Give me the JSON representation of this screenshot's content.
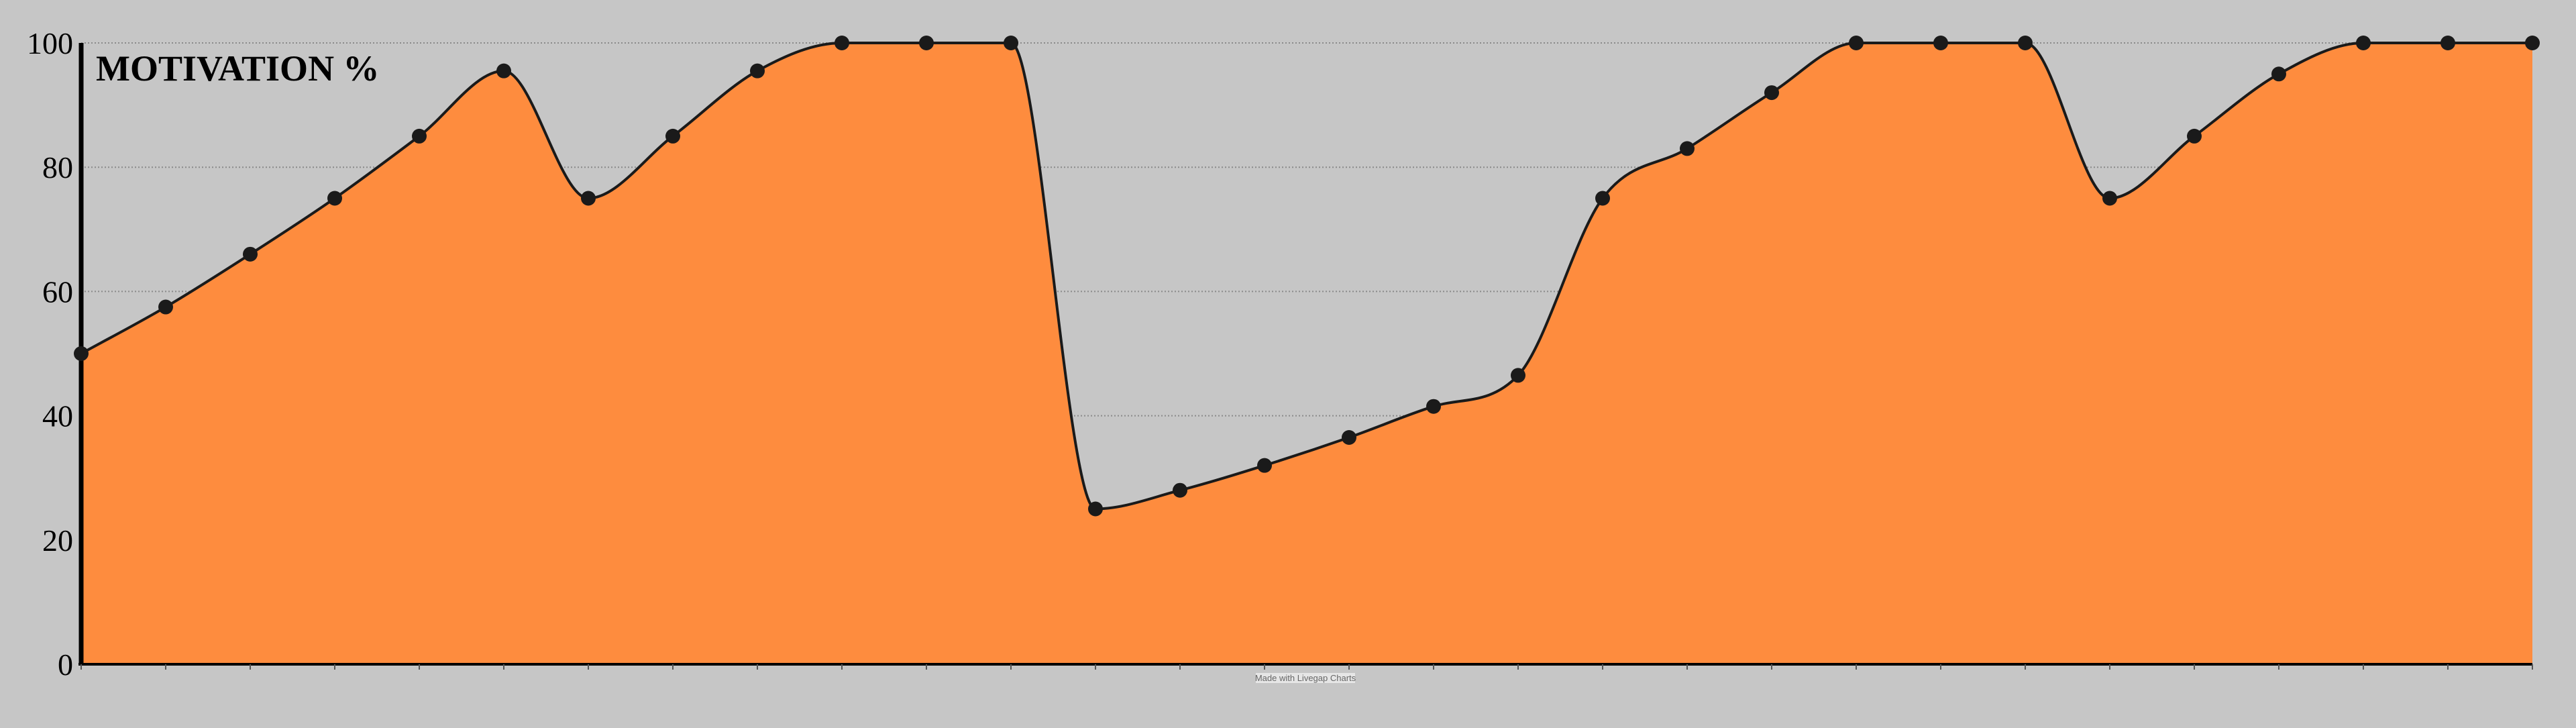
{
  "chart_data": {
    "type": "area",
    "title": "MOTIVATION %",
    "xlabel": "",
    "ylabel": "",
    "ylim": [
      0,
      100
    ],
    "y_ticks": [
      "0",
      "20",
      "40",
      "60",
      "80",
      "100"
    ],
    "grid": "horizontal dotted",
    "legend": "none",
    "x_count": 30,
    "values": [
      50,
      57.5,
      66,
      75,
      85,
      95.5,
      75,
      85,
      95.5,
      100,
      100,
      100,
      25,
      28,
      32,
      36.5,
      41.5,
      46.5,
      75,
      83,
      92,
      100,
      100,
      100,
      75,
      85,
      95,
      100,
      100,
      100
    ]
  },
  "colors": {
    "background": "#c6c6c6",
    "area_fill": "#fe8c3e",
    "line": "#1a1a1a",
    "grid": "#8a8a8a",
    "axis": "#000000"
  },
  "credit": "Made with Livegap Charts"
}
